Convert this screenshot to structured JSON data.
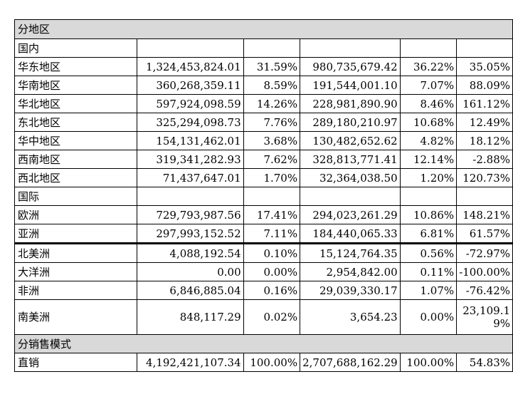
{
  "table": {
    "sections": {
      "region": "分地区",
      "domestic": "国内",
      "international": "国际",
      "sales_mode": "分销售模式"
    },
    "domestic_rows": [
      {
        "name": "华东地区",
        "c1": "1,324,453,824.01",
        "c2": "31.59%",
        "c3": "980,735,679.42",
        "c4": "36.22%",
        "c5": "35.05%"
      },
      {
        "name": "华南地区",
        "c1": "360,268,359.11",
        "c2": "8.59%",
        "c3": "191,544,001.10",
        "c4": "7.07%",
        "c5": "88.09%"
      },
      {
        "name": "华北地区",
        "c1": "597,924,098.59",
        "c2": "14.26%",
        "c3": "228,981,890.90",
        "c4": "8.46%",
        "c5": "161.12%"
      },
      {
        "name": "东北地区",
        "c1": "325,294,098.73",
        "c2": "7.76%",
        "c3": "289,180,210.97",
        "c4": "10.68%",
        "c5": "12.49%"
      },
      {
        "name": "华中地区",
        "c1": "154,131,462.01",
        "c2": "3.68%",
        "c3": "130,482,652.62",
        "c4": "4.82%",
        "c5": "18.12%"
      },
      {
        "name": "西南地区",
        "c1": "319,341,282.93",
        "c2": "7.62%",
        "c3": "328,813,771.41",
        "c4": "12.14%",
        "c5": "-2.88%"
      },
      {
        "name": "西北地区",
        "c1": "71,437,647.01",
        "c2": "1.70%",
        "c3": "32,364,038.50",
        "c4": "1.20%",
        "c5": "120.73%"
      }
    ],
    "international_rows": [
      {
        "name": "欧洲",
        "c1": "729,793,987.56",
        "c2": "17.41%",
        "c3": "294,023,261.29",
        "c4": "10.86%",
        "c5": "148.21%"
      },
      {
        "name": "亚洲",
        "c1": "297,993,152.52",
        "c2": "7.11%",
        "c3": "184,440,065.33",
        "c4": "6.81%",
        "c5": "61.57%"
      },
      {
        "name": "北美洲",
        "c1": "4,088,192.54",
        "c2": "0.10%",
        "c3": "15,124,764.35",
        "c4": "0.56%",
        "c5": "-72.97%"
      },
      {
        "name": "大洋洲",
        "c1": "0.00",
        "c2": "0.00%",
        "c3": "2,954,842.00",
        "c4": "0.11%",
        "c5": "-100.00%"
      },
      {
        "name": "非洲",
        "c1": "6,846,885.04",
        "c2": "0.16%",
        "c3": "29,039,330.17",
        "c4": "1.07%",
        "c5": "-76.42%"
      },
      {
        "name": "南美洲",
        "c1": "848,117.29",
        "c2": "0.02%",
        "c3": "3,654.23",
        "c4": "0.00%",
        "c5": "23,109.19%"
      }
    ],
    "direct": {
      "name": "直销",
      "c1": "4,192,421,107.34",
      "c2": "100.00%",
      "c3": "2,707,688,162.29",
      "c4": "100.00%",
      "c5": "54.83%"
    }
  }
}
